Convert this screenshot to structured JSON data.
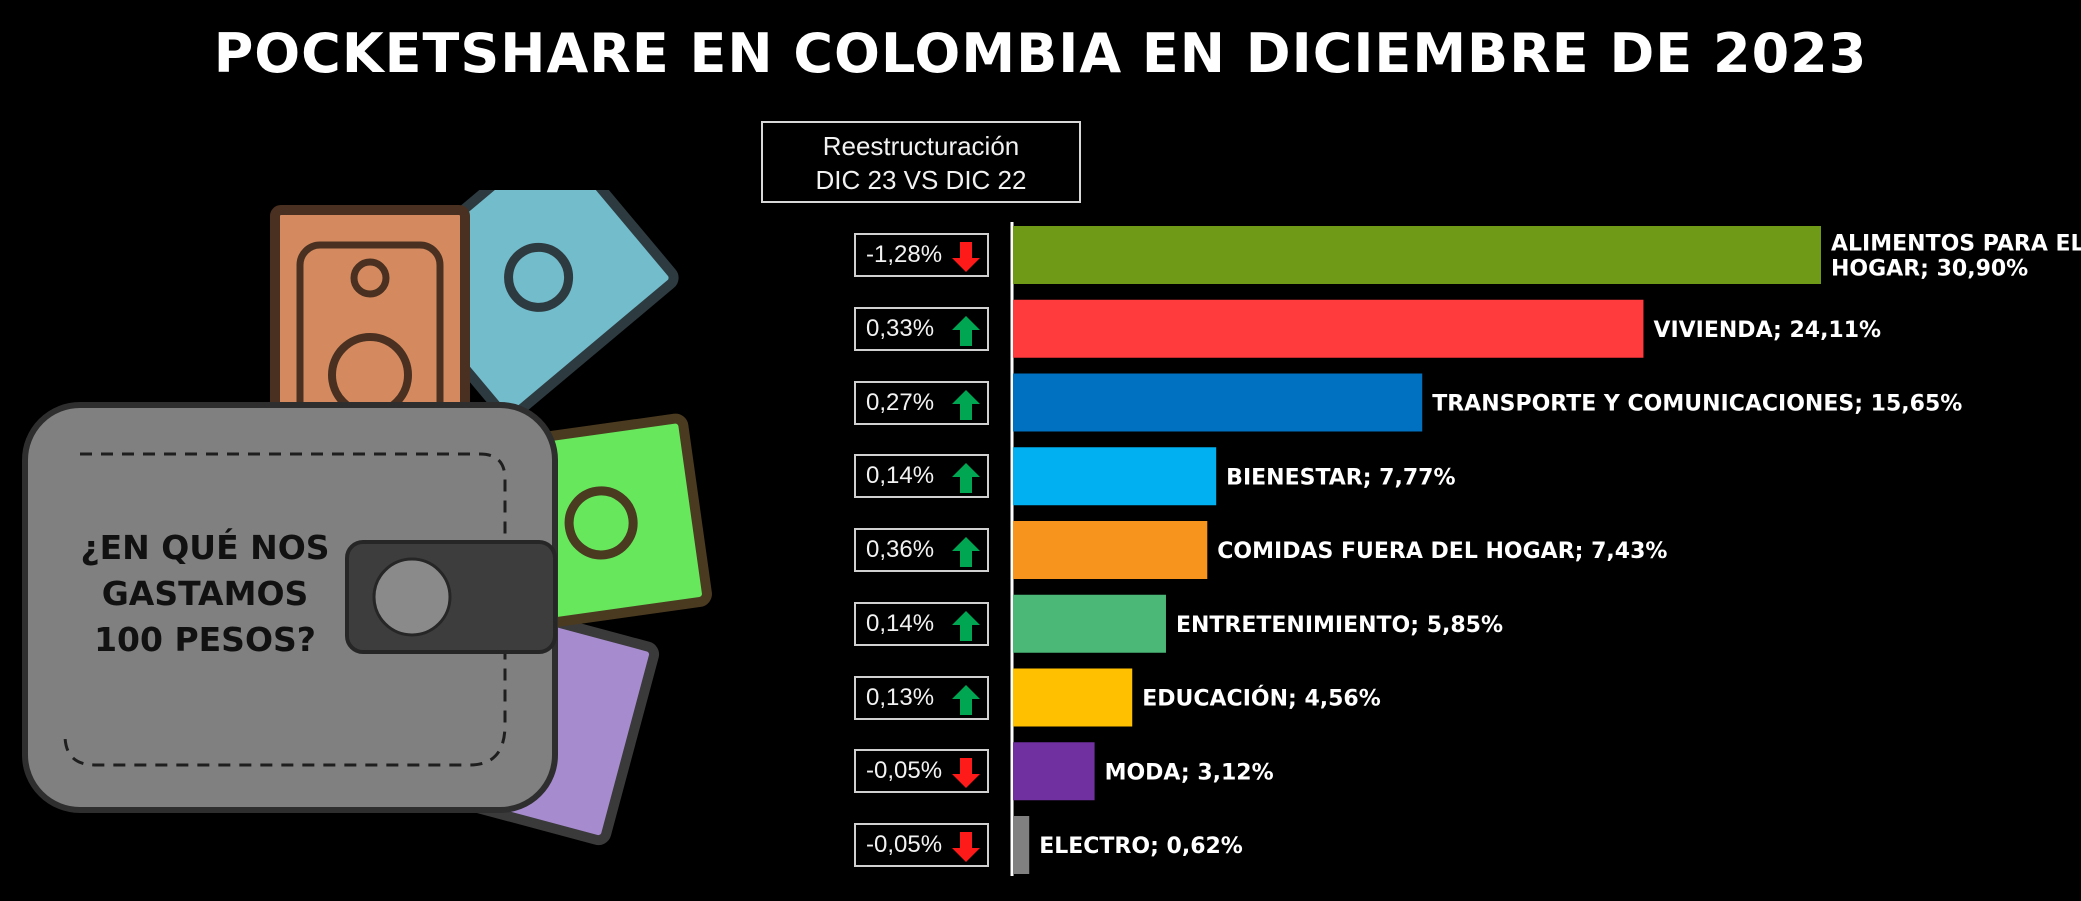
{
  "title": "POCKETSHARE EN COLOMBIA EN DICIEMBRE DE 2023",
  "wallet": {
    "question_lines": [
      "¿EN QUÉ NOS",
      "GASTAMOS",
      "100 PESOS?"
    ],
    "icon": "wallet-with-banknotes-icon"
  },
  "change_header": {
    "line1": "Reestructuración",
    "line2": "DIC 23 VS DIC 22"
  },
  "chart_data": {
    "type": "bar",
    "orientation": "horizontal",
    "title": "POCKETSHARE EN COLOMBIA EN DICIEMBRE DE 2023",
    "unit": "%",
    "categories": [
      "ALIMENTOS PARA EL HOGAR",
      "VIVIENDA",
      "TRANSPORTE Y COMUNICACIONES",
      "BIENESTAR",
      "COMIDAS FUERA DEL HOGAR",
      "ENTRETENIMIENTO",
      "EDUCACIÓN",
      "MODA",
      "ELECTRO"
    ],
    "values": [
      30.9,
      24.11,
      15.65,
      7.77,
      7.43,
      5.85,
      4.56,
      3.12,
      0.62
    ],
    "data_labels": [
      [
        "ALIMENTOS PARA EL",
        "HOGAR; 30,90%"
      ],
      [
        "VIVIENDA; 24,11%"
      ],
      [
        "TRANSPORTE Y COMUNICACIONES; 15,65%"
      ],
      [
        "BIENESTAR; 7,77%"
      ],
      [
        "COMIDAS FUERA DEL HOGAR; 7,43%"
      ],
      [
        "ENTRETENIMIENTO; 5,85%"
      ],
      [
        "EDUCACIÓN; 4,56%"
      ],
      [
        "MODA; 3,12%"
      ],
      [
        "ELECTRO; 0,62%"
      ]
    ],
    "colors": [
      "#6e9a17",
      "#ff3b3d",
      "#0070c0",
      "#00b0f0",
      "#f7941d",
      "#4cb878",
      "#ffc000",
      "#7030a0",
      "#808080"
    ],
    "changes": [
      "-1,28%",
      "0,33%",
      "0,27%",
      "0,14%",
      "0,36%",
      "0,14%",
      "0,13%",
      "-0,05%",
      "-0,05%"
    ],
    "change_directions": [
      "down",
      "up",
      "up",
      "up",
      "up",
      "up",
      "up",
      "down",
      "down"
    ],
    "arrow_colors": {
      "up": "#00a651",
      "down": "#ff1a1a"
    },
    "grid": false,
    "legend": "none"
  }
}
